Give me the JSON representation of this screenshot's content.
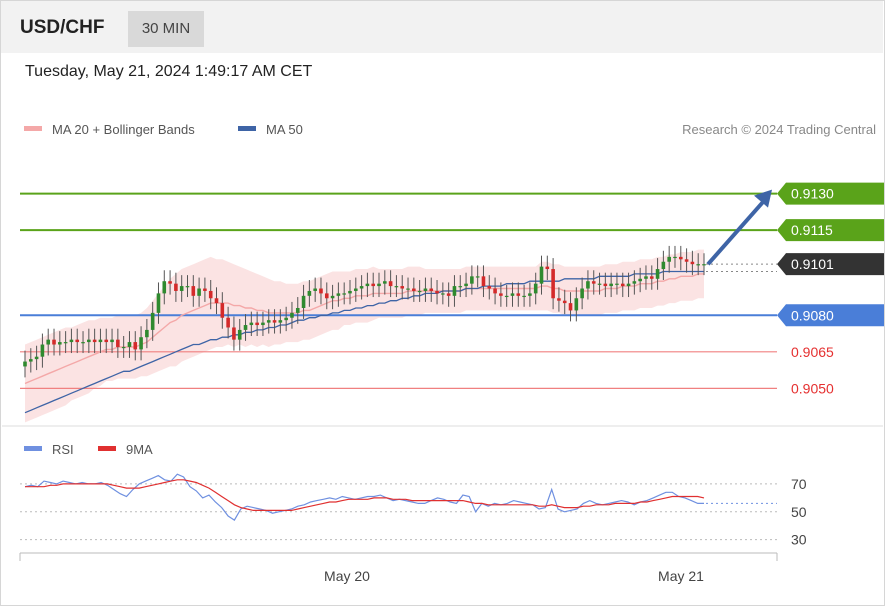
{
  "header": {
    "symbol": "USD/CHF",
    "timeframe": "30 MIN"
  },
  "timestamp": "Tuesday, May 21, 2024 1:49:17 AM CET",
  "credit": "Research © 2024 Trading Central",
  "colors": {
    "bollinger": "#f4a8a8",
    "ma50": "#3e64a6",
    "green": "#5aa31a",
    "blue": "#4a7ed8",
    "red": "#f08080",
    "dark": "#333333",
    "rsi": "#6f90e0",
    "rsi9ma": "#e03030",
    "candle_up": "#2f8a2f",
    "candle_down": "#d42a2a"
  },
  "chart_data": [
    {
      "type": "candlestick",
      "title": "USD/CHF",
      "legend": [
        {
          "name": "MA 20 + Bollinger Bands",
          "color": "#f4a8a8"
        },
        {
          "name": "MA 50",
          "color": "#3e64a6"
        }
      ],
      "ylim": [
        0.9037,
        0.9152
      ],
      "x_ticks": [
        "May 20",
        "May 21"
      ],
      "levels": [
        {
          "label": "0.9130",
          "value": 0.913,
          "kind": "green"
        },
        {
          "label": "0.9115",
          "value": 0.9115,
          "kind": "green"
        },
        {
          "label": "0.9101",
          "value": 0.9101,
          "kind": "last"
        },
        {
          "label": "0.9080",
          "value": 0.908,
          "kind": "blue"
        },
        {
          "label": "0.9065",
          "value": 0.9065,
          "kind": "red"
        },
        {
          "label": "0.9050",
          "value": 0.905,
          "kind": "red"
        }
      ],
      "projection": {
        "from": 0.9101,
        "to": 0.913
      },
      "close": [
        0.9061,
        0.9062,
        0.9063,
        0.9068,
        0.907,
        0.9068,
        0.9069,
        0.9069,
        0.907,
        0.9069,
        0.9069,
        0.907,
        0.9069,
        0.907,
        0.9069,
        0.907,
        0.9067,
        0.9067,
        0.9069,
        0.9066,
        0.9071,
        0.9074,
        0.9081,
        0.9089,
        0.9094,
        0.9093,
        0.909,
        0.9092,
        0.9092,
        0.9088,
        0.9091,
        0.909,
        0.9087,
        0.9085,
        0.9079,
        0.9075,
        0.907,
        0.9074,
        0.9076,
        0.9077,
        0.9076,
        0.9077,
        0.9078,
        0.9077,
        0.9078,
        0.9079,
        0.9081,
        0.9083,
        0.9088,
        0.909,
        0.9091,
        0.9089,
        0.9087,
        0.9088,
        0.9089,
        0.9089,
        0.909,
        0.9091,
        0.9092,
        0.9093,
        0.9092,
        0.9093,
        0.9094,
        0.9092,
        0.9092,
        0.9091,
        0.9091,
        0.909,
        0.909,
        0.9091,
        0.909,
        0.9089,
        0.9089,
        0.9088,
        0.9092,
        0.9092,
        0.9093,
        0.9096,
        0.9096,
        0.9092,
        0.9091,
        0.9089,
        0.9088,
        0.9088,
        0.9089,
        0.9088,
        0.9088,
        0.9089,
        0.9093,
        0.91,
        0.9099,
        0.9087,
        0.9086,
        0.9085,
        0.9082,
        0.9087,
        0.9091,
        0.9094,
        0.9093,
        0.9093,
        0.9092,
        0.9093,
        0.9093,
        0.9092,
        0.9093,
        0.9094,
        0.9095,
        0.9096,
        0.9095,
        0.9099,
        0.9102,
        0.9104,
        0.9104,
        0.9103,
        0.9102,
        0.9101,
        0.9101,
        0.9101
      ],
      "ma50": [
        0.904,
        0.9041,
        0.9042,
        0.9043,
        0.9044,
        0.9045,
        0.9046,
        0.9047,
        0.9048,
        0.9049,
        0.905,
        0.9051,
        0.9052,
        0.9053,
        0.9054,
        0.9055,
        0.9056,
        0.9057,
        0.9057,
        0.9058,
        0.9059,
        0.906,
        0.9061,
        0.9062,
        0.9063,
        0.9064,
        0.9065,
        0.9066,
        0.9067,
        0.9068,
        0.9068,
        0.9069,
        0.907,
        0.907,
        0.9071,
        0.9071,
        0.9072,
        0.9072,
        0.9073,
        0.9073,
        0.9074,
        0.9074,
        0.9075,
        0.9075,
        0.9076,
        0.9076,
        0.9077,
        0.9078,
        0.9078,
        0.9079,
        0.9079,
        0.908,
        0.908,
        0.9081,
        0.9081,
        0.9082,
        0.9082,
        0.9083,
        0.9083,
        0.9084,
        0.9084,
        0.9085,
        0.9085,
        0.9086,
        0.9086,
        0.9087,
        0.9087,
        0.9088,
        0.9088,
        0.9089,
        0.9089,
        0.9089,
        0.909,
        0.909,
        0.909,
        0.909,
        0.9091,
        0.9091,
        0.9091,
        0.9092,
        0.9092,
        0.9092,
        0.9092,
        0.9093,
        0.9093,
        0.9093,
        0.9093,
        0.9094,
        0.9094,
        0.9094,
        0.9094,
        0.9094,
        0.9094,
        0.9095,
        0.9095,
        0.9095,
        0.9095,
        0.9095,
        0.9095,
        0.9096,
        0.9096,
        0.9096,
        0.9096,
        0.9096,
        0.9096,
        0.9097,
        0.9097,
        0.9097,
        0.9097,
        0.9097,
        0.9098,
        0.9098,
        0.9098,
        0.9098,
        0.9098,
        0.9098,
        0.9098,
        0.9098
      ],
      "ma20": [
        0.9052,
        0.9053,
        0.9054,
        0.9055,
        0.9056,
        0.9057,
        0.9058,
        0.9059,
        0.906,
        0.9061,
        0.9062,
        0.9063,
        0.9064,
        0.9065,
        0.9066,
        0.9066,
        0.9067,
        0.9067,
        0.9067,
        0.9067,
        0.9068,
        0.9069,
        0.9071,
        0.9073,
        0.9075,
        0.9077,
        0.9078,
        0.908,
        0.9081,
        0.9082,
        0.9083,
        0.9084,
        0.9085,
        0.9085,
        0.9085,
        0.9085,
        0.9084,
        0.9084,
        0.9083,
        0.9083,
        0.9082,
        0.9082,
        0.9081,
        0.9081,
        0.9081,
        0.9081,
        0.9081,
        0.9081,
        0.9082,
        0.9082,
        0.9083,
        0.9084,
        0.9085,
        0.9086,
        0.9086,
        0.9087,
        0.9087,
        0.9088,
        0.9088,
        0.9088,
        0.9089,
        0.9089,
        0.9089,
        0.9089,
        0.9089,
        0.9089,
        0.909,
        0.909,
        0.909,
        0.909,
        0.909,
        0.909,
        0.909,
        0.909,
        0.909,
        0.909,
        0.9091,
        0.9091,
        0.9091,
        0.9091,
        0.9091,
        0.9091,
        0.9091,
        0.9091,
        0.9091,
        0.9091,
        0.9091,
        0.9091,
        0.9091,
        0.9092,
        0.9092,
        0.9091,
        0.9091,
        0.909,
        0.909,
        0.909,
        0.909,
        0.909,
        0.909,
        0.909,
        0.9091,
        0.9091,
        0.9091,
        0.9092,
        0.9092,
        0.9092,
        0.9093,
        0.9093,
        0.9093,
        0.9094,
        0.9094,
        0.9095,
        0.9095,
        0.9096,
        0.9096,
        0.9096,
        0.9097,
        0.9097
      ],
      "band_width": [
        0.0016,
        0.0016,
        0.0016,
        0.0016,
        0.0016,
        0.0016,
        0.0016,
        0.0016,
        0.0015,
        0.0015,
        0.0015,
        0.0015,
        0.0014,
        0.0014,
        0.0013,
        0.0013,
        0.0013,
        0.0013,
        0.0013,
        0.0013,
        0.0013,
        0.0014,
        0.0015,
        0.0016,
        0.0017,
        0.0018,
        0.0019,
        0.0019,
        0.0019,
        0.0019,
        0.0019,
        0.0019,
        0.0019,
        0.0018,
        0.0018,
        0.0017,
        0.0017,
        0.0016,
        0.0016,
        0.0015,
        0.0015,
        0.0014,
        0.0014,
        0.0013,
        0.0013,
        0.0012,
        0.0012,
        0.0012,
        0.0012,
        0.0012,
        0.0012,
        0.0012,
        0.0012,
        0.0012,
        0.0012,
        0.0011,
        0.0011,
        0.0011,
        0.0011,
        0.0011,
        0.0011,
        0.001,
        0.001,
        0.001,
        0.001,
        0.001,
        0.001,
        0.001,
        0.001,
        0.0009,
        0.0009,
        0.0009,
        0.0009,
        0.0009,
        0.0009,
        0.0009,
        0.0009,
        0.0009,
        0.0009,
        0.0009,
        0.0009,
        0.0009,
        0.0009,
        0.0009,
        0.0009,
        0.0009,
        0.0009,
        0.0009,
        0.0009,
        0.001,
        0.001,
        0.001,
        0.001,
        0.001,
        0.001,
        0.001,
        0.001,
        0.001,
        0.001,
        0.001,
        0.001,
        0.001,
        0.001,
        0.001,
        0.001,
        0.001,
        0.001,
        0.001,
        0.001,
        0.001,
        0.001,
        0.001,
        0.001,
        0.001,
        0.001,
        0.001,
        0.001,
        0.001
      ]
    },
    {
      "type": "line",
      "legend": [
        {
          "name": "RSI",
          "color": "#6f90e0"
        },
        {
          "name": "9MA",
          "color": "#e03030"
        }
      ],
      "ylim": [
        24,
        80
      ],
      "y_ticks": [
        70,
        50,
        30
      ],
      "last_value": 56,
      "series": [
        {
          "name": "RSI",
          "values": [
            68,
            69,
            68,
            72,
            71,
            70,
            72,
            71,
            70,
            71,
            70,
            70,
            71,
            69,
            66,
            63,
            61,
            66,
            70,
            72,
            74,
            76,
            73,
            72,
            77,
            75,
            68,
            65,
            60,
            62,
            57,
            53,
            47,
            44,
            52,
            54,
            53,
            52,
            51,
            49,
            50,
            51,
            52,
            54,
            55,
            57,
            58,
            59,
            60,
            59,
            61,
            60,
            59,
            60,
            61,
            61,
            62,
            60,
            58,
            59,
            58,
            57,
            56,
            56,
            58,
            60,
            59,
            57,
            56,
            62,
            61,
            50,
            56,
            54,
            56,
            55,
            56,
            58,
            57,
            56,
            55,
            52,
            53,
            66,
            52,
            50,
            51,
            52,
            56,
            58,
            56,
            55,
            56,
            57,
            58,
            57,
            55,
            57,
            58,
            60,
            62,
            64,
            64,
            61,
            60,
            58,
            56,
            56
          ]
        },
        {
          "name": "9MA",
          "values": [
            68,
            68,
            68,
            68,
            69,
            69,
            70,
            70,
            70,
            70,
            70,
            70,
            70,
            70,
            69,
            68,
            67,
            67,
            67,
            68,
            69,
            70,
            71,
            72,
            73,
            73,
            72,
            71,
            69,
            67,
            64,
            61,
            58,
            55,
            53,
            52,
            51,
            51,
            51,
            51,
            51,
            51,
            51,
            52,
            53,
            54,
            55,
            56,
            57,
            57,
            58,
            59,
            59,
            59,
            59,
            60,
            60,
            60,
            59,
            59,
            59,
            58,
            58,
            58,
            58,
            58,
            58,
            58,
            58,
            58,
            57,
            56,
            56,
            55,
            55,
            55,
            55,
            55,
            55,
            55,
            55,
            54,
            54,
            55,
            54,
            53,
            53,
            53,
            54,
            54,
            55,
            55,
            55,
            56,
            56,
            56,
            56,
            57,
            57,
            58,
            59,
            60,
            61,
            61,
            61,
            61,
            61,
            60
          ]
        }
      ]
    }
  ]
}
